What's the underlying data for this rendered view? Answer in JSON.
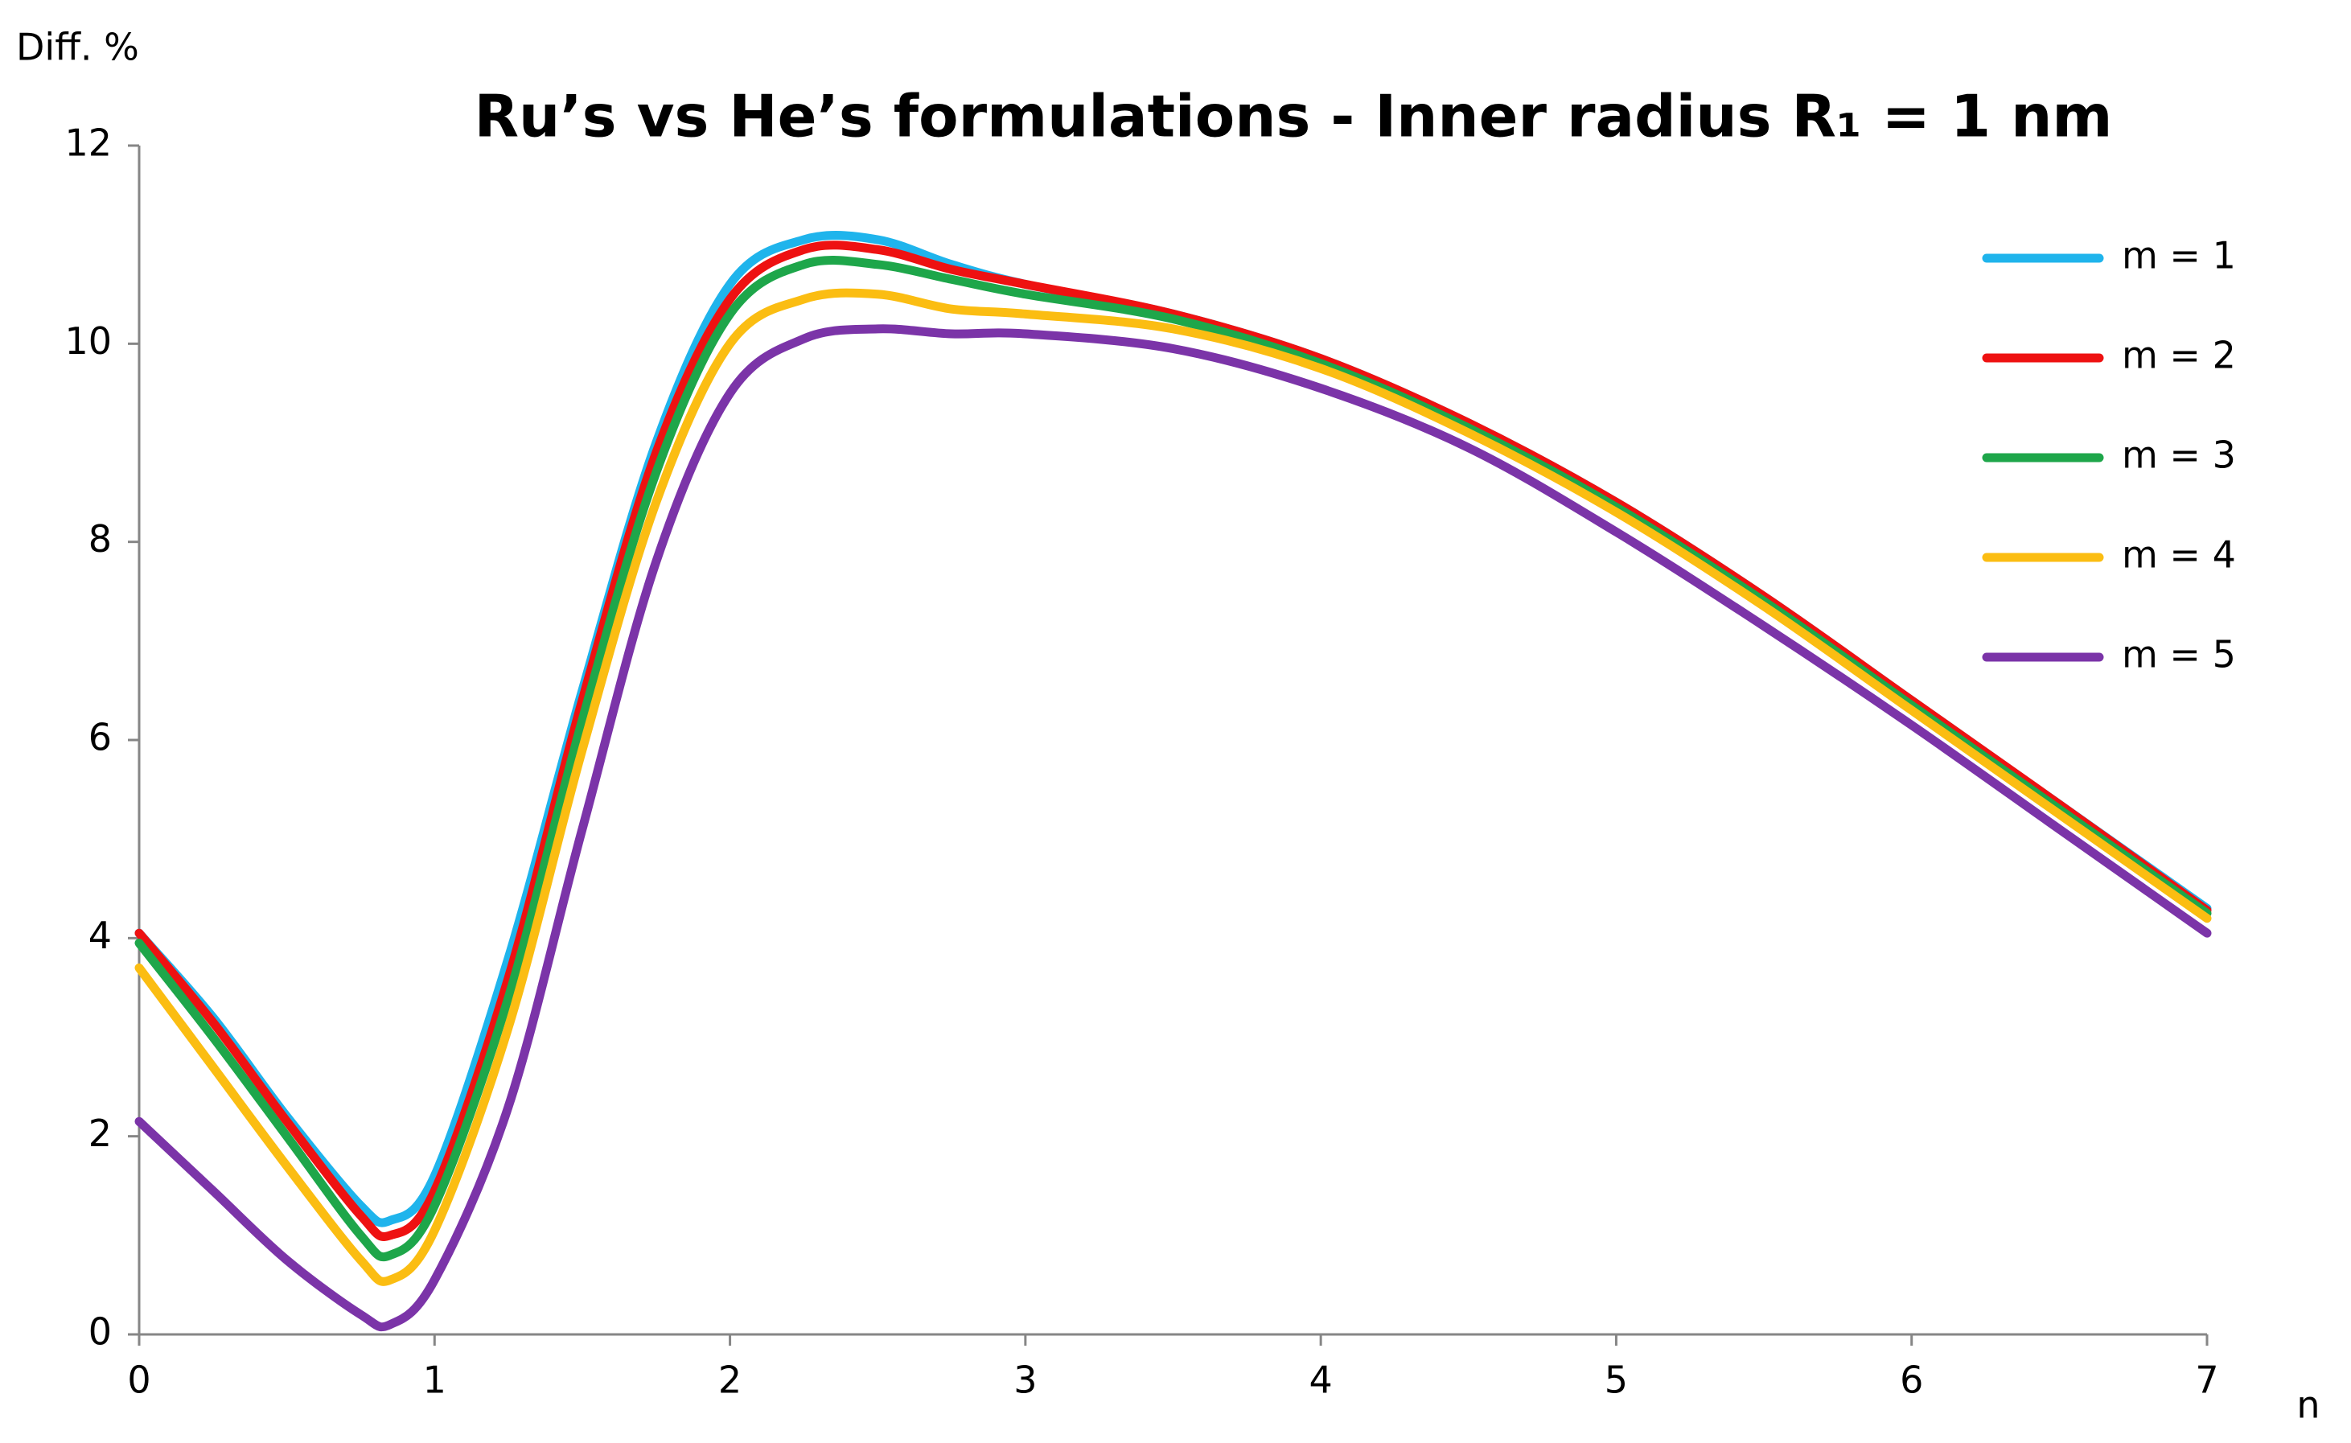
{
  "chart_data": {
    "type": "line",
    "title": "Ru’s vs He’s formulations - Inner radius R₁ = 1 nm",
    "y_label": "Diff. %",
    "x_label": "n",
    "x": [
      0,
      0.25,
      0.5,
      0.75,
      0.85,
      1,
      1.25,
      1.5,
      1.75,
      2,
      2.25,
      2.5,
      2.75,
      3,
      3.5,
      4,
      4.5,
      5,
      5.5,
      6,
      6.5,
      7
    ],
    "series": [
      {
        "name": "m = 1",
        "color": "#1fb4ec",
        "values": [
          4.05,
          3.2,
          2.2,
          1.3,
          1.15,
          1.6,
          3.8,
          6.5,
          9.0,
          10.6,
          11.05,
          11.05,
          10.8,
          10.6,
          10.3,
          9.85,
          9.2,
          8.4,
          7.45,
          6.4,
          5.35,
          4.3
        ]
      },
      {
        "name": "m = 2",
        "color": "#ee1111",
        "values": [
          4.05,
          3.15,
          2.15,
          1.2,
          1.0,
          1.45,
          3.6,
          6.4,
          8.9,
          10.45,
          10.95,
          10.95,
          10.75,
          10.6,
          10.3,
          9.85,
          9.2,
          8.4,
          7.45,
          6.4,
          5.35,
          4.28
        ]
      },
      {
        "name": "m = 3",
        "color": "#1ea64a",
        "values": [
          3.95,
          3.0,
          2.0,
          1.0,
          0.8,
          1.3,
          3.4,
          6.2,
          8.7,
          10.3,
          10.8,
          10.8,
          10.65,
          10.5,
          10.25,
          9.8,
          9.15,
          8.35,
          7.4,
          6.35,
          5.3,
          4.25
        ]
      },
      {
        "name": "m = 4",
        "color": "#fbbd12",
        "values": [
          3.7,
          2.7,
          1.7,
          0.75,
          0.55,
          1.05,
          3.1,
          5.9,
          8.4,
          10.0,
          10.45,
          10.5,
          10.35,
          10.3,
          10.15,
          9.75,
          9.1,
          8.3,
          7.35,
          6.3,
          5.25,
          4.2
        ]
      },
      {
        "name": "m = 5",
        "color": "#7b34a8",
        "values": [
          2.15,
          1.45,
          0.75,
          0.2,
          0.1,
          0.55,
          2.3,
          5.1,
          7.8,
          9.5,
          10.05,
          10.15,
          10.1,
          10.1,
          9.95,
          9.55,
          8.95,
          8.1,
          7.15,
          6.15,
          5.1,
          4.05
        ]
      }
    ],
    "xlim": [
      0,
      7
    ],
    "xticks": [
      0,
      1,
      2,
      3,
      4,
      5,
      6,
      7
    ],
    "ylim": [
      0,
      12
    ],
    "yticks": [
      0,
      2,
      4,
      6,
      8,
      10,
      12
    ],
    "grid": false,
    "legend": "upper right"
  }
}
